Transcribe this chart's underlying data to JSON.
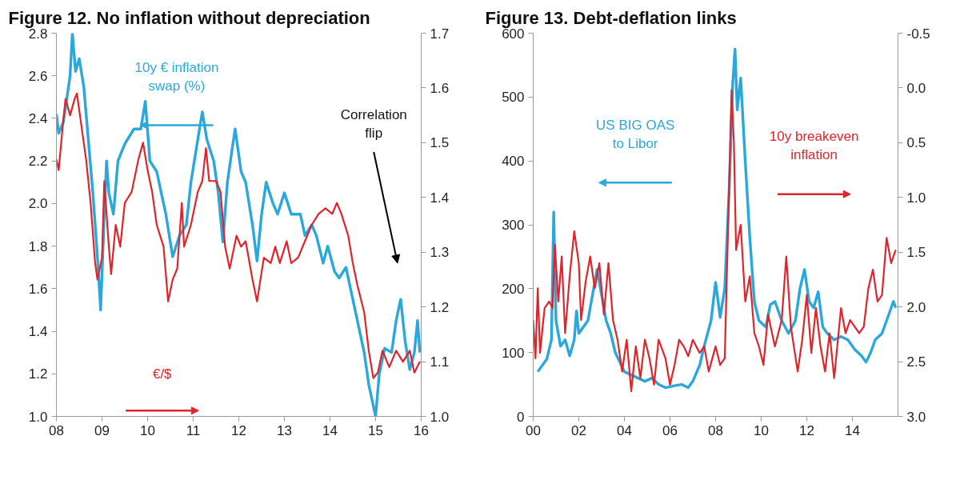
{
  "chart_data": [
    {
      "type": "line",
      "title": "Figure 12. No inflation without depreciation",
      "xlim": [
        2008,
        2016
      ],
      "xticks": [
        {
          "value": 2008,
          "label": "08"
        },
        {
          "value": 2009,
          "label": "09"
        },
        {
          "value": 2010,
          "label": "10"
        },
        {
          "value": 2011,
          "label": "11"
        },
        {
          "value": 2012,
          "label": "12"
        },
        {
          "value": 2013,
          "label": "13"
        },
        {
          "value": 2014,
          "label": "14"
        },
        {
          "value": 2015,
          "label": "15"
        },
        {
          "value": 2016,
          "label": "16"
        }
      ],
      "ylim": [
        1.0,
        2.8
      ],
      "yticks": [
        {
          "value": 1.0,
          "label": "1.0"
        },
        1.2,
        1.4,
        1.6,
        1.8,
        {
          "value": 2.0,
          "label": "2.0"
        },
        2.2,
        2.4,
        2.6,
        2.8
      ],
      "y2lim": [
        1.0,
        1.7
      ],
      "y2ticks": [
        {
          "value": 1.0,
          "label": "1.0"
        },
        1.1,
        1.2,
        1.3,
        1.4,
        1.5,
        1.6,
        1.7
      ],
      "grid": false,
      "annotations": [
        "Correlation flip"
      ],
      "series": [
        {
          "name": "10y € inflation swap (%)",
          "color": "#2aa8dc",
          "x": [
            2008.0,
            2008.05,
            2008.15,
            2008.2,
            2008.3,
            2008.35,
            2008.42,
            2008.5,
            2008.6,
            2008.7,
            2008.8,
            2008.9,
            2008.97,
            2009.05,
            2009.1,
            2009.15,
            2009.25,
            2009.35,
            2009.5,
            2009.7,
            2009.85,
            2009.95,
            2010.05,
            2010.2,
            2010.4,
            2010.55,
            2010.7,
            2010.85,
            2010.95,
            2011.1,
            2011.2,
            2011.3,
            2011.45,
            2011.55,
            2011.65,
            2011.75,
            2011.85,
            2011.92,
            2012.05,
            2012.15,
            2012.3,
            2012.4,
            2012.5,
            2012.6,
            2012.75,
            2012.85,
            2013.0,
            2013.15,
            2013.35,
            2013.45,
            2013.6,
            2013.7,
            2013.85,
            2013.95,
            2014.1,
            2014.2,
            2014.35,
            2014.45,
            2014.55,
            2014.65,
            2014.75,
            2014.85,
            2014.95,
            2015.0,
            2015.08,
            2015.2,
            2015.35,
            2015.45,
            2015.55,
            2015.65,
            2015.75,
            2015.85,
            2015.92,
            2015.97
          ],
          "values": [
            2.42,
            2.33,
            2.38,
            2.45,
            2.6,
            2.8,
            2.62,
            2.68,
            2.55,
            2.3,
            2.05,
            1.75,
            1.5,
            1.95,
            2.2,
            2.05,
            1.95,
            2.2,
            2.28,
            2.35,
            2.35,
            2.48,
            2.2,
            2.15,
            1.95,
            1.75,
            1.85,
            1.9,
            2.1,
            2.3,
            2.43,
            2.3,
            2.2,
            2.05,
            1.82,
            2.1,
            2.25,
            2.35,
            2.15,
            2.1,
            1.9,
            1.73,
            1.95,
            2.1,
            2.0,
            1.95,
            2.05,
            1.95,
            1.95,
            1.85,
            1.9,
            1.85,
            1.72,
            1.8,
            1.68,
            1.65,
            1.7,
            1.6,
            1.5,
            1.4,
            1.3,
            1.15,
            1.05,
            1.0,
            1.2,
            1.32,
            1.3,
            1.45,
            1.55,
            1.35,
            1.22,
            1.3,
            1.45,
            1.3
          ]
        },
        {
          "name": "€/$",
          "color": "#e0242b",
          "axis": "y2",
          "x": [
            2008.0,
            2008.05,
            2008.15,
            2008.2,
            2008.3,
            2008.4,
            2008.45,
            2008.55,
            2008.65,
            2008.75,
            2008.85,
            2008.9,
            2009.0,
            2009.05,
            2009.15,
            2009.2,
            2009.3,
            2009.4,
            2009.5,
            2009.65,
            2009.8,
            2009.9,
            2010.0,
            2010.1,
            2010.2,
            2010.35,
            2010.45,
            2010.55,
            2010.65,
            2010.75,
            2010.8,
            2010.95,
            2011.1,
            2011.2,
            2011.28,
            2011.35,
            2011.5,
            2011.6,
            2011.7,
            2011.8,
            2011.95,
            2012.05,
            2012.15,
            2012.3,
            2012.4,
            2012.55,
            2012.7,
            2012.8,
            2012.9,
            2013.05,
            2013.15,
            2013.3,
            2013.45,
            2013.6,
            2013.75,
            2013.9,
            2014.05,
            2014.15,
            2014.25,
            2014.4,
            2014.5,
            2014.6,
            2014.75,
            2014.85,
            2014.95,
            2015.05,
            2015.15,
            2015.3,
            2015.45,
            2015.6,
            2015.75,
            2015.85,
            2015.97
          ],
          "values": [
            1.47,
            1.45,
            1.54,
            1.58,
            1.55,
            1.58,
            1.59,
            1.53,
            1.47,
            1.39,
            1.28,
            1.25,
            1.29,
            1.43,
            1.31,
            1.26,
            1.35,
            1.31,
            1.39,
            1.41,
            1.47,
            1.5,
            1.45,
            1.41,
            1.35,
            1.31,
            1.21,
            1.25,
            1.27,
            1.39,
            1.31,
            1.35,
            1.41,
            1.43,
            1.49,
            1.43,
            1.43,
            1.41,
            1.31,
            1.27,
            1.33,
            1.31,
            1.32,
            1.25,
            1.21,
            1.29,
            1.28,
            1.31,
            1.28,
            1.32,
            1.28,
            1.29,
            1.32,
            1.35,
            1.37,
            1.38,
            1.37,
            1.39,
            1.37,
            1.33,
            1.28,
            1.24,
            1.19,
            1.12,
            1.07,
            1.08,
            1.12,
            1.09,
            1.12,
            1.1,
            1.12,
            1.08,
            1.1
          ]
        }
      ]
    },
    {
      "type": "line",
      "title": "Figure 13. Debt-deflation links",
      "xlim": [
        2000,
        2016
      ],
      "xticks": [
        {
          "value": 2000,
          "label": "00"
        },
        {
          "value": 2002,
          "label": "02"
        },
        {
          "value": 2004,
          "label": "04"
        },
        {
          "value": 2006,
          "label": "06"
        },
        {
          "value": 2008,
          "label": "08"
        },
        {
          "value": 2010,
          "label": "10"
        },
        {
          "value": 2012,
          "label": "12"
        },
        {
          "value": 2014,
          "label": "14"
        }
      ],
      "ylim": [
        0,
        600
      ],
      "yticks": [
        0,
        100,
        200,
        300,
        400,
        500,
        600
      ],
      "y2lim": [
        3.0,
        -0.5
      ],
      "y2ticks": [
        {
          "value": 3.0,
          "label": "3.0"
        },
        2.5,
        {
          "value": 2.0,
          "label": "2.0"
        },
        1.5,
        {
          "value": 1.0,
          "label": "1.0"
        },
        0.5,
        {
          "value": 0.0,
          "label": "0.0"
        },
        -0.5
      ],
      "grid": false,
      "series": [
        {
          "name": "US BIG OAS to Libor",
          "color": "#2aa8dc",
          "x": [
            2000.2,
            2000.4,
            2000.6,
            2000.8,
            2000.9,
            2001.0,
            2001.2,
            2001.4,
            2001.6,
            2001.8,
            2001.9,
            2002.0,
            2002.2,
            2002.4,
            2002.6,
            2002.8,
            2003.0,
            2003.2,
            2003.4,
            2003.6,
            2003.8,
            2004.0,
            2004.3,
            2004.6,
            2004.9,
            2005.2,
            2005.5,
            2005.8,
            2006.2,
            2006.5,
            2006.8,
            2007.0,
            2007.3,
            2007.5,
            2007.8,
            2008.0,
            2008.2,
            2008.4,
            2008.6,
            2008.75,
            2008.85,
            2008.95,
            2009.1,
            2009.3,
            2009.5,
            2009.7,
            2009.9,
            2010.2,
            2010.4,
            2010.6,
            2010.9,
            2011.2,
            2011.5,
            2011.7,
            2011.9,
            2012.1,
            2012.3,
            2012.5,
            2012.7,
            2012.9,
            2013.2,
            2013.5,
            2013.8,
            2014.1,
            2014.4,
            2014.6,
            2014.8,
            2015.0,
            2015.3,
            2015.6,
            2015.8,
            2015.9
          ],
          "values": [
            70,
            80,
            90,
            120,
            320,
            150,
            110,
            120,
            95,
            120,
            165,
            130,
            140,
            150,
            190,
            230,
            190,
            150,
            130,
            100,
            85,
            70,
            65,
            60,
            55,
            60,
            50,
            45,
            48,
            50,
            45,
            55,
            80,
            110,
            150,
            210,
            155,
            200,
            360,
            520,
            575,
            480,
            530,
            400,
            280,
            180,
            150,
            140,
            175,
            180,
            150,
            130,
            150,
            200,
            230,
            180,
            170,
            195,
            140,
            130,
            120,
            125,
            120,
            105,
            95,
            85,
            100,
            120,
            130,
            160,
            180,
            170
          ]
        },
        {
          "name": "10y breakeven inflation",
          "color": "#e0242b",
          "axis": "y2",
          "x": [
            2000.0,
            2000.1,
            2000.2,
            2000.3,
            2000.5,
            2000.7,
            2000.85,
            2000.95,
            2001.1,
            2001.25,
            2001.4,
            2001.6,
            2001.8,
            2002.0,
            2002.1,
            2002.3,
            2002.5,
            2002.7,
            2002.9,
            2003.1,
            2003.3,
            2003.5,
            2003.7,
            2003.9,
            2004.1,
            2004.3,
            2004.5,
            2004.7,
            2004.9,
            2005.1,
            2005.3,
            2005.5,
            2005.8,
            2006.0,
            2006.2,
            2006.4,
            2006.6,
            2006.8,
            2007.0,
            2007.3,
            2007.5,
            2007.7,
            2008.0,
            2008.2,
            2008.4,
            2008.55,
            2008.7,
            2008.8,
            2008.9,
            2009.1,
            2009.3,
            2009.5,
            2009.7,
            2009.9,
            2010.1,
            2010.3,
            2010.6,
            2010.9,
            2011.1,
            2011.3,
            2011.6,
            2011.8,
            2012.0,
            2012.2,
            2012.4,
            2012.6,
            2012.8,
            2013.0,
            2013.2,
            2013.5,
            2013.7,
            2013.9,
            2014.1,
            2014.3,
            2014.5,
            2014.7,
            2014.9,
            2015.1,
            2015.3,
            2015.5,
            2015.7,
            2015.9
          ],
          "values": [
            2.12,
            2.47,
            1.83,
            2.42,
            2.01,
            1.95,
            2.01,
            1.43,
            1.95,
            1.54,
            2.24,
            1.72,
            1.31,
            1.6,
            2.12,
            1.77,
            1.54,
            1.83,
            1.6,
            2.07,
            1.6,
            2.12,
            2.3,
            2.59,
            2.3,
            2.77,
            2.36,
            2.65,
            2.3,
            2.47,
            2.71,
            2.3,
            2.47,
            2.71,
            2.53,
            2.3,
            2.36,
            2.45,
            2.3,
            2.42,
            2.36,
            2.59,
            2.36,
            2.53,
            2.47,
            1.25,
            0.02,
            0.49,
            1.48,
            1.25,
            1.95,
            1.72,
            2.24,
            2.36,
            2.53,
            2.07,
            2.36,
            2.12,
            1.54,
            2.18,
            2.59,
            2.3,
            1.89,
            2.42,
            2.01,
            2.36,
            2.59,
            2.24,
            2.65,
            2.01,
            2.24,
            2.12,
            2.18,
            2.24,
            2.18,
            1.83,
            1.66,
            1.95,
            1.89,
            1.37,
            1.6,
            1.48
          ]
        }
      ]
    }
  ]
}
